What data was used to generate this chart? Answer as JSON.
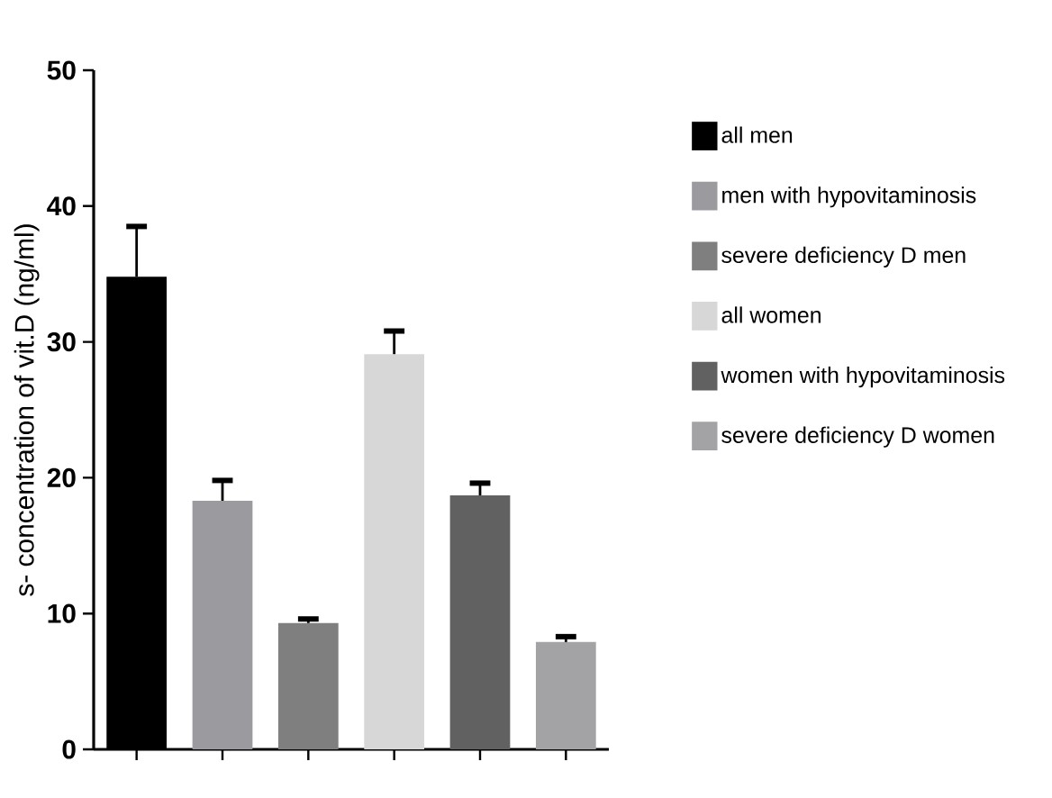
{
  "chart_data": {
    "type": "bar",
    "ylabel": "s- concentration of vit.D (ng/ml)",
    "categories": [
      null,
      null,
      null,
      null,
      null,
      null
    ],
    "series": [
      {
        "name": "all men",
        "color": "#000000",
        "values": [
          34.8,
          null,
          null,
          null,
          null,
          null
        ],
        "errors": [
          [
            34.8,
            38.5
          ],
          null,
          null,
          null,
          null,
          null
        ]
      },
      {
        "name": "men with hypovitaminosis",
        "color": "#9b9b9f",
        "values": [
          null,
          18.3,
          null,
          null,
          null,
          null
        ],
        "errors": [
          null,
          [
            18.3,
            19.8
          ],
          null,
          null,
          null,
          null
        ]
      },
      {
        "name": "severe deficiency D men",
        "color": "#7f7f7f",
        "values": [
          null,
          null,
          9.3,
          null,
          null,
          null
        ],
        "errors": [
          null,
          null,
          [
            9.3,
            9.6
          ],
          null,
          null,
          null
        ]
      },
      {
        "name": "all women",
        "color": "#d7d7d7",
        "values": [
          null,
          null,
          null,
          29.1,
          null,
          null
        ],
        "errors": [
          null,
          null,
          null,
          [
            29.1,
            30.8
          ],
          null,
          null
        ]
      },
      {
        "name": "women with hypovitaminosis",
        "color": "#616161",
        "values": [
          null,
          null,
          null,
          null,
          18.7,
          null
        ],
        "errors": [
          null,
          null,
          null,
          null,
          [
            18.7,
            19.6
          ],
          null
        ]
      },
      {
        "name": "severe deficiency D women",
        "color": "#a3a3a6",
        "values": [
          null,
          null,
          null,
          null,
          null,
          7.9
        ],
        "errors": [
          null,
          null,
          null,
          null,
          null,
          [
            7.9,
            8.3
          ]
        ]
      }
    ],
    "ylim": [
      0,
      50
    ],
    "yticks": [
      0,
      10,
      20,
      30,
      40,
      50
    ],
    "legend": "right",
    "grid": false
  }
}
